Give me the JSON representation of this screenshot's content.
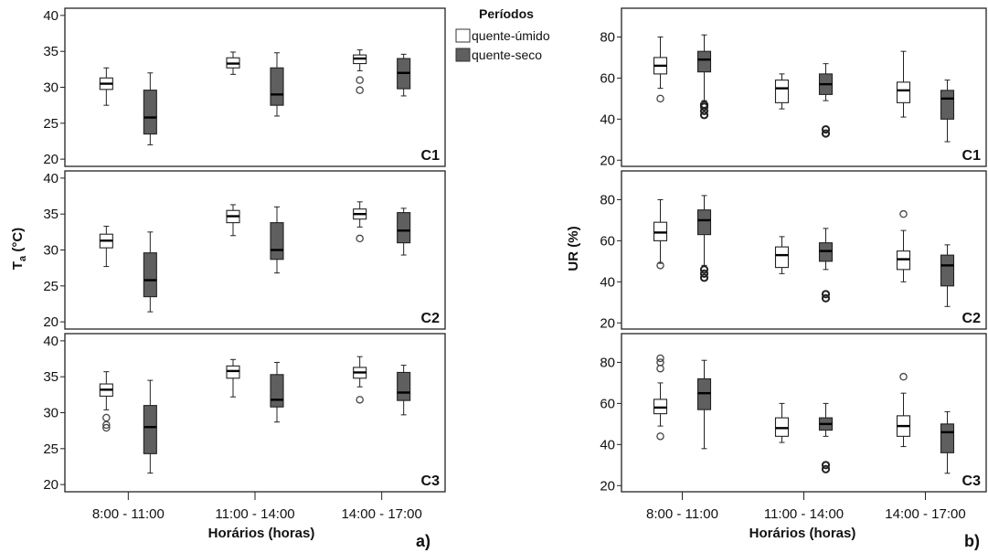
{
  "legend": {
    "title": "Períodos",
    "items": [
      {
        "label": "quente-úmido",
        "color": "#ffffff"
      },
      {
        "label": "quente-seco",
        "color": "#5f5f5f"
      }
    ]
  },
  "figures": [
    {
      "letter": "a)",
      "xlabel": "Horários (horas)",
      "ylabel_main": "T",
      "ylabel_sub": "a",
      "ylabel_rest": " (°C)"
    },
    {
      "letter": "b)",
      "xlabel": "Horários (horas)",
      "ylabel_main": "UR (%)",
      "ylabel_sub": "",
      "ylabel_rest": ""
    }
  ],
  "chart_data": [
    {
      "type": "boxplot",
      "variable": "Ta (°C)",
      "categories": [
        "8:00 - 11:00",
        "11:00 - 14:00",
        "14:00 - 17:00"
      ],
      "ylim": [
        19,
        41
      ],
      "yticks": [
        20,
        25,
        30,
        35,
        40
      ],
      "panels": [
        {
          "label": "C1",
          "groups": [
            {
              "category": "8:00 - 11:00",
              "series": "quente-úmido",
              "min": 27.5,
              "q1": 29.7,
              "median": 30.5,
              "q3": 31.3,
              "max": 32.7,
              "outliers": []
            },
            {
              "category": "8:00 - 11:00",
              "series": "quente-seco",
              "min": 22.0,
              "q1": 23.5,
              "median": 25.8,
              "q3": 29.6,
              "max": 32.0,
              "outliers": []
            },
            {
              "category": "11:00 - 14:00",
              "series": "quente-úmido",
              "min": 31.8,
              "q1": 32.7,
              "median": 33.3,
              "q3": 34.1,
              "max": 34.9,
              "outliers": []
            },
            {
              "category": "11:00 - 14:00",
              "series": "quente-seco",
              "min": 26.0,
              "q1": 27.5,
              "median": 29.0,
              "q3": 32.7,
              "max": 34.8,
              "outliers": []
            },
            {
              "category": "14:00 - 17:00",
              "series": "quente-úmido",
              "min": 32.3,
              "q1": 33.3,
              "median": 34.0,
              "q3": 34.5,
              "max": 35.2,
              "outliers": [
                29.6,
                31.0
              ]
            },
            {
              "category": "14:00 - 17:00",
              "series": "quente-seco",
              "min": 28.8,
              "q1": 29.8,
              "median": 32.0,
              "q3": 34.0,
              "max": 34.6,
              "outliers": []
            }
          ]
        },
        {
          "label": "C2",
          "groups": [
            {
              "category": "8:00 - 11:00",
              "series": "quente-úmido",
              "min": 27.7,
              "q1": 30.3,
              "median": 31.3,
              "q3": 32.2,
              "max": 33.3,
              "outliers": []
            },
            {
              "category": "8:00 - 11:00",
              "series": "quente-seco",
              "min": 21.4,
              "q1": 23.5,
              "median": 25.8,
              "q3": 29.6,
              "max": 32.5,
              "outliers": []
            },
            {
              "category": "11:00 - 14:00",
              "series": "quente-úmido",
              "min": 32.0,
              "q1": 33.8,
              "median": 34.7,
              "q3": 35.5,
              "max": 36.3,
              "outliers": []
            },
            {
              "category": "11:00 - 14:00",
              "series": "quente-seco",
              "min": 26.8,
              "q1": 28.7,
              "median": 30.0,
              "q3": 33.8,
              "max": 36.0,
              "outliers": []
            },
            {
              "category": "14:00 - 17:00",
              "series": "quente-úmido",
              "min": 33.2,
              "q1": 34.3,
              "median": 35.0,
              "q3": 35.7,
              "max": 36.7,
              "outliers": [
                31.6
              ]
            },
            {
              "category": "14:00 - 17:00",
              "series": "quente-seco",
              "min": 29.3,
              "q1": 31.0,
              "median": 32.7,
              "q3": 35.2,
              "max": 35.8,
              "outliers": []
            }
          ]
        },
        {
          "label": "C3",
          "groups": [
            {
              "category": "8:00 - 11:00",
              "series": "quente-úmido",
              "min": 30.4,
              "q1": 32.3,
              "median": 33.2,
              "q3": 34.0,
              "max": 35.7,
              "outliers": [
                27.9,
                28.3,
                29.3
              ]
            },
            {
              "category": "8:00 - 11:00",
              "series": "quente-seco",
              "min": 21.6,
              "q1": 24.3,
              "median": 28.0,
              "q3": 31.0,
              "max": 34.5,
              "outliers": []
            },
            {
              "category": "11:00 - 14:00",
              "series": "quente-úmido",
              "min": 32.2,
              "q1": 34.8,
              "median": 35.8,
              "q3": 36.5,
              "max": 37.4,
              "outliers": []
            },
            {
              "category": "11:00 - 14:00",
              "series": "quente-seco",
              "min": 28.7,
              "q1": 30.8,
              "median": 31.8,
              "q3": 35.3,
              "max": 37.0,
              "outliers": []
            },
            {
              "category": "14:00 - 17:00",
              "series": "quente-úmido",
              "min": 33.6,
              "q1": 34.8,
              "median": 35.6,
              "q3": 36.3,
              "max": 37.8,
              "outliers": [
                31.8
              ]
            },
            {
              "category": "14:00 - 17:00",
              "series": "quente-seco",
              "min": 29.7,
              "q1": 31.7,
              "median": 32.8,
              "q3": 35.6,
              "max": 36.6,
              "outliers": []
            }
          ]
        }
      ]
    },
    {
      "type": "boxplot",
      "variable": "UR (%)",
      "categories": [
        "8:00 - 11:00",
        "11:00 - 14:00",
        "14:00 - 17:00"
      ],
      "ylim": [
        17,
        94
      ],
      "yticks": [
        20,
        40,
        60,
        80
      ],
      "panels": [
        {
          "label": "C1",
          "groups": [
            {
              "category": "8:00 - 11:00",
              "series": "quente-úmido",
              "min": 55,
              "q1": 62,
              "median": 66,
              "q3": 70,
              "max": 80,
              "outliers": [
                50
              ]
            },
            {
              "category": "8:00 - 11:00",
              "series": "quente-seco",
              "min": 49,
              "q1": 63,
              "median": 69,
              "q3": 73,
              "max": 81,
              "outliers": [
                42,
                44,
                46,
                47
              ]
            },
            {
              "category": "11:00 - 14:00",
              "series": "quente-úmido",
              "min": 45,
              "q1": 48,
              "median": 55,
              "q3": 59,
              "max": 62,
              "outliers": []
            },
            {
              "category": "11:00 - 14:00",
              "series": "quente-seco",
              "min": 49,
              "q1": 52,
              "median": 57,
              "q3": 62,
              "max": 67,
              "outliers": [
                33,
                35
              ]
            },
            {
              "category": "14:00 - 17:00",
              "series": "quente-úmido",
              "min": 41,
              "q1": 48,
              "median": 54,
              "q3": 58,
              "max": 73,
              "outliers": []
            },
            {
              "category": "14:00 - 17:00",
              "series": "quente-seco",
              "min": 29,
              "q1": 40,
              "median": 50,
              "q3": 54,
              "max": 59,
              "outliers": []
            }
          ]
        },
        {
          "label": "C2",
          "groups": [
            {
              "category": "8:00 - 11:00",
              "series": "quente-úmido",
              "min": 49,
              "q1": 60,
              "median": 64,
              "q3": 69,
              "max": 80,
              "outliers": [
                48
              ]
            },
            {
              "category": "8:00 - 11:00",
              "series": "quente-seco",
              "min": 48,
              "q1": 63,
              "median": 70,
              "q3": 75,
              "max": 82,
              "outliers": [
                42,
                44,
                46
              ]
            },
            {
              "category": "11:00 - 14:00",
              "series": "quente-úmido",
              "min": 44,
              "q1": 47,
              "median": 53,
              "q3": 57,
              "max": 62,
              "outliers": []
            },
            {
              "category": "11:00 - 14:00",
              "series": "quente-seco",
              "min": 46,
              "q1": 50,
              "median": 55,
              "q3": 59,
              "max": 66,
              "outliers": [
                32,
                34
              ]
            },
            {
              "category": "14:00 - 17:00",
              "series": "quente-úmido",
              "min": 40,
              "q1": 46,
              "median": 51,
              "q3": 55,
              "max": 65,
              "outliers": [
                73
              ]
            },
            {
              "category": "14:00 - 17:00",
              "series": "quente-seco",
              "min": 28,
              "q1": 38,
              "median": 48,
              "q3": 53,
              "max": 58,
              "outliers": []
            }
          ]
        },
        {
          "label": "C3",
          "groups": [
            {
              "category": "8:00 - 11:00",
              "series": "quente-úmido",
              "min": 49,
              "q1": 55,
              "median": 58,
              "q3": 62,
              "max": 70,
              "outliers": [
                44,
                77,
                80,
                82
              ]
            },
            {
              "category": "8:00 - 11:00",
              "series": "quente-seco",
              "min": 38,
              "q1": 57,
              "median": 65,
              "q3": 72,
              "max": 81,
              "outliers": []
            },
            {
              "category": "11:00 - 14:00",
              "series": "quente-úmido",
              "min": 41,
              "q1": 44,
              "median": 48,
              "q3": 53,
              "max": 60,
              "outliers": []
            },
            {
              "category": "11:00 - 14:00",
              "series": "quente-seco",
              "min": 44,
              "q1": 47,
              "median": 50,
              "q3": 53,
              "max": 60,
              "outliers": [
                28,
                30
              ]
            },
            {
              "category": "14:00 - 17:00",
              "series": "quente-úmido",
              "min": 39,
              "q1": 44,
              "median": 49,
              "q3": 54,
              "max": 65,
              "outliers": [
                73
              ]
            },
            {
              "category": "14:00 - 17:00",
              "series": "quente-seco",
              "min": 26,
              "q1": 36,
              "median": 46,
              "q3": 50,
              "max": 56,
              "outliers": []
            }
          ]
        }
      ]
    }
  ]
}
